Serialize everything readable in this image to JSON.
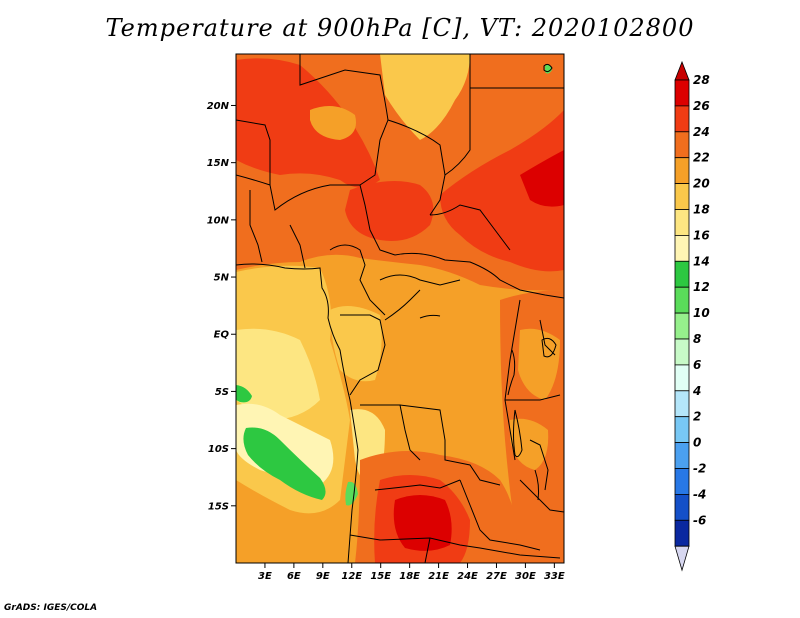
{
  "title": "Temperature at 900hPa [C], VT: 2020102800",
  "footer": "GrADS: IGES/COLA",
  "map": {
    "lon_range": [
      0,
      34
    ],
    "lat_range": [
      -20,
      24.5
    ],
    "lat_ticks": [
      {
        "value": 20,
        "label": "20N"
      },
      {
        "value": 15,
        "label": "15N"
      },
      {
        "value": 10,
        "label": "10N"
      },
      {
        "value": 5,
        "label": "5N"
      },
      {
        "value": 0,
        "label": "EQ"
      },
      {
        "value": -5,
        "label": "5S"
      },
      {
        "value": -10,
        "label": "10S"
      },
      {
        "value": -15,
        "label": "15S"
      }
    ],
    "lon_ticks": [
      {
        "value": 3,
        "label": "3E"
      },
      {
        "value": 6,
        "label": "6E"
      },
      {
        "value": 9,
        "label": "9E"
      },
      {
        "value": 12,
        "label": "12E"
      },
      {
        "value": 15,
        "label": "15E"
      },
      {
        "value": 18,
        "label": "18E"
      },
      {
        "value": 21,
        "label": "21E"
      },
      {
        "value": 24,
        "label": "24E"
      },
      {
        "value": 27,
        "label": "27E"
      },
      {
        "value": 30,
        "label": "30E"
      },
      {
        "value": 33,
        "label": "33E"
      }
    ]
  },
  "colorbar": {
    "levels": [
      {
        "label": "28",
        "color": "#dc0000"
      },
      {
        "label": "26",
        "color": "#f03c14"
      },
      {
        "label": "24",
        "color": "#f06e1e"
      },
      {
        "label": "22",
        "color": "#f5a028"
      },
      {
        "label": "20",
        "color": "#fac84b"
      },
      {
        "label": "18",
        "color": "#fde682"
      },
      {
        "label": "16",
        "color": "#fff5b4"
      },
      {
        "label": "14",
        "color": "#2dc841"
      },
      {
        "label": "12",
        "color": "#5adc5a"
      },
      {
        "label": "10",
        "color": "#96f08c"
      },
      {
        "label": "8",
        "color": "#c8fac8"
      },
      {
        "label": "6",
        "color": "#e1fff5"
      },
      {
        "label": "4",
        "color": "#b4e6fa"
      },
      {
        "label": "2",
        "color": "#78c8f5"
      },
      {
        "label": "0",
        "color": "#4ba0f0"
      },
      {
        "label": "-2",
        "color": "#2878e6"
      },
      {
        "label": "-4",
        "color": "#1450c8"
      },
      {
        "label": "-6",
        "color": "#0a28a0"
      }
    ],
    "top_color": "#c80000",
    "bottom_color": "#d7d7f0",
    "under_color": "#000064"
  }
}
